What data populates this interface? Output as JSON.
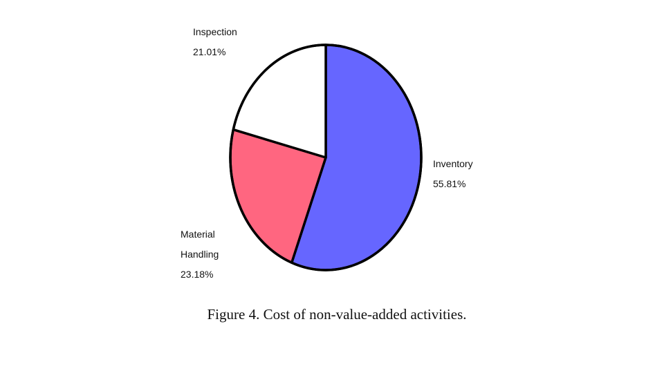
{
  "chart_data": {
    "type": "pie",
    "slices": [
      {
        "label": "Inventory",
        "value": 55.81,
        "value_label": "55.81%",
        "color": "#6666ff"
      },
      {
        "label": "Material Handling",
        "label_lines": [
          "Material",
          "Handling"
        ],
        "value": 23.18,
        "value_label": "23.18%",
        "color": "#ff6680"
      },
      {
        "label": "Inspection",
        "value": 21.01,
        "value_label": "21.01%",
        "color": "#ffffff"
      }
    ],
    "caption": "Figure 4.  Cost of non-value-added activities."
  }
}
